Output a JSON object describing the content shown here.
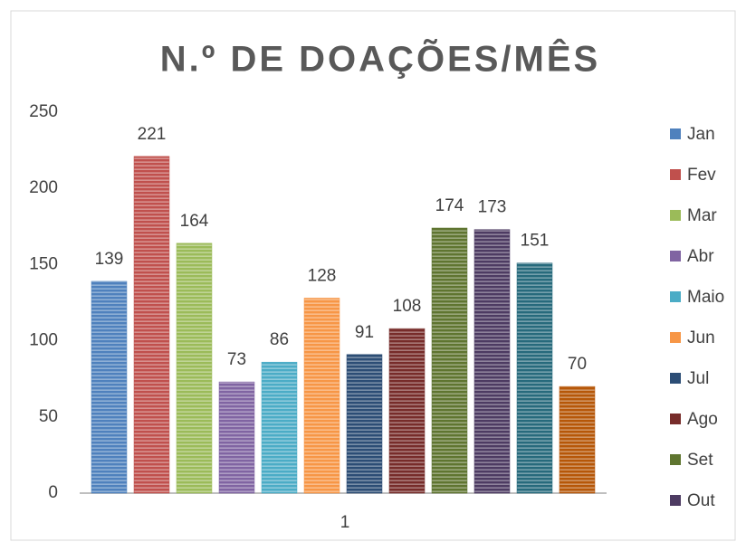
{
  "chart_data": {
    "type": "bar",
    "title": "N.º DE DOAÇÕES/MÊS",
    "categories": [
      "1"
    ],
    "series": [
      {
        "name": "Jan",
        "color": "#4f81bd",
        "values": [
          139
        ]
      },
      {
        "name": "Fev",
        "color": "#c0504d",
        "values": [
          221
        ]
      },
      {
        "name": "Mar",
        "color": "#9bbb59",
        "values": [
          164
        ]
      },
      {
        "name": "Abr",
        "color": "#8064a2",
        "values": [
          73
        ]
      },
      {
        "name": "Maio",
        "color": "#4bacc6",
        "values": [
          86
        ]
      },
      {
        "name": "Jun",
        "color": "#f79646",
        "values": [
          128
        ]
      },
      {
        "name": "Jul",
        "color": "#2c4d75",
        "values": [
          91
        ]
      },
      {
        "name": "Ago",
        "color": "#772c2a",
        "values": [
          108
        ]
      },
      {
        "name": "Set",
        "color": "#5f7530",
        "values": [
          174
        ]
      },
      {
        "name": "Out",
        "color": "#4d3b62",
        "values": [
          173
        ]
      },
      {
        "name": null,
        "color": "#276a7c",
        "values": [
          151
        ]
      },
      {
        "name": null,
        "color": "#b65708",
        "values": [
          70
        ]
      }
    ],
    "ylim": [
      0,
      250
    ],
    "yticks": [
      0,
      50,
      100,
      150,
      200,
      250
    ],
    "grid": false,
    "legend": "right"
  }
}
